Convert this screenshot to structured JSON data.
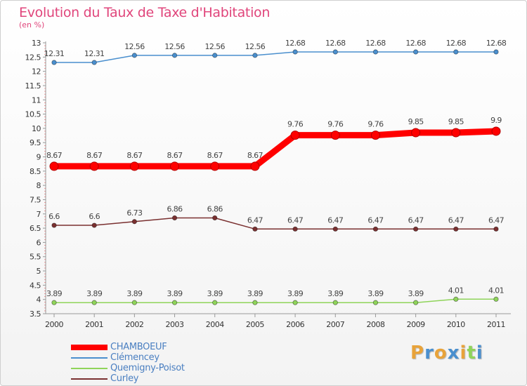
{
  "chart_data": {
    "type": "line",
    "title": "Evolution du Taux de Taxe d'Habitation",
    "ylabel": "(en %)",
    "xlabel": "",
    "x": [
      "2000",
      "2001",
      "2002",
      "2003",
      "2004",
      "2005",
      "2006",
      "2007",
      "2008",
      "2009",
      "2010",
      "2011"
    ],
    "ylim": [
      3.5,
      13
    ],
    "yticks": [
      "3.5",
      "4",
      "4.5",
      "5",
      "5.5",
      "6",
      "6.5",
      "7",
      "7.5",
      "8",
      "8.5",
      "9",
      "9.5",
      "10",
      "10.5",
      "11",
      "11.5",
      "12",
      "12.5",
      "13"
    ],
    "grid": false,
    "legend_position": "bottom-left",
    "series": [
      {
        "name": "CHAMBOEUF",
        "color": "#ff0000",
        "emphasis": true,
        "values": [
          8.67,
          8.67,
          8.67,
          8.67,
          8.67,
          8.67,
          9.76,
          9.76,
          9.76,
          9.85,
          9.85,
          9.9
        ],
        "labels": [
          "8.67",
          "8.67",
          "8.67",
          "8.67",
          "8.67",
          "8.67",
          "9.76",
          "9.76",
          "9.76",
          "9.85",
          "9.85",
          "9.9"
        ]
      },
      {
        "name": "Clémencey",
        "color": "#4a8fce",
        "emphasis": false,
        "values": [
          12.31,
          12.31,
          12.56,
          12.56,
          12.56,
          12.56,
          12.68,
          12.68,
          12.68,
          12.68,
          12.68,
          12.68
        ],
        "labels": [
          "12.31",
          "12.31",
          "12.56",
          "12.56",
          "12.56",
          "12.56",
          "12.68",
          "12.68",
          "12.68",
          "12.68",
          "12.68",
          "12.68"
        ]
      },
      {
        "name": "Quemigny-Poisot",
        "color": "#8fd45a",
        "emphasis": false,
        "values": [
          3.89,
          3.89,
          3.89,
          3.89,
          3.89,
          3.89,
          3.89,
          3.89,
          3.89,
          3.89,
          4.01,
          4.01
        ],
        "labels": [
          "3.89",
          "3.89",
          "3.89",
          "3.89",
          "3.89",
          "3.89",
          "3.89",
          "3.89",
          "3.89",
          "3.89",
          "4.01",
          "4.01"
        ]
      },
      {
        "name": "Curley",
        "color": "#7a3030",
        "emphasis": false,
        "values": [
          6.6,
          6.6,
          6.73,
          6.86,
          6.86,
          6.47,
          6.47,
          6.47,
          6.47,
          6.47,
          6.47,
          6.47
        ],
        "labels": [
          "6.6",
          "6.6",
          "6.73",
          "6.86",
          "6.86",
          "6.47",
          "6.47",
          "6.47",
          "6.47",
          "6.47",
          "6.47",
          "6.47"
        ]
      }
    ]
  },
  "logo": {
    "letters": [
      "P",
      "r",
      "o",
      "x",
      "i",
      "t",
      "i"
    ],
    "colors": [
      "#e8a33a",
      "#4a8fce",
      "#e8a33a",
      "#4a8fce",
      "#e8a33a",
      "#8fd45a",
      "#4a8fce"
    ]
  }
}
